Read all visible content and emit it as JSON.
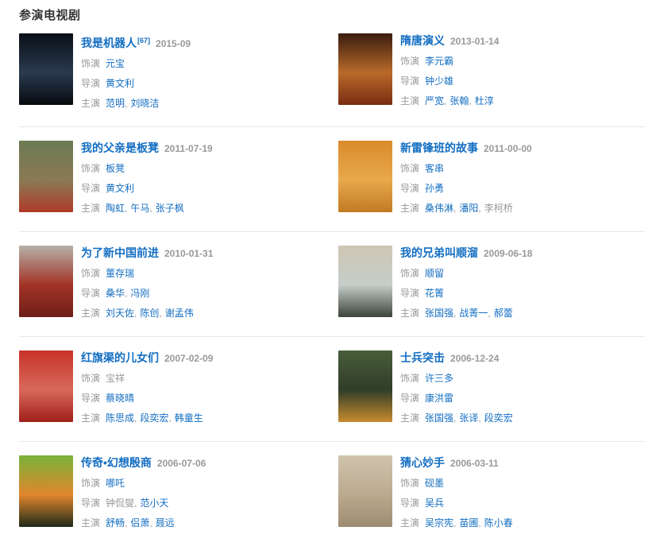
{
  "page": {
    "section_title": "参演电视剧"
  },
  "labels": {
    "role": "饰演",
    "director": "导演",
    "starring": "主演",
    "separator": ","
  },
  "colors": {
    "link": "#136ec2",
    "muted": "#999999",
    "heading": "#333333",
    "divider": "#e7e7e7"
  },
  "items": [
    {
      "title": "我是机器人",
      "ref": "[67]",
      "date": "2015-09",
      "role": [
        {
          "text": "元宝",
          "link": true
        }
      ],
      "directors": [
        {
          "text": "黄文利",
          "link": true
        }
      ],
      "starring": [
        {
          "text": "范明",
          "link": true
        },
        {
          "text": "刘晓洁",
          "link": true
        }
      ],
      "poster_colors": [
        "#0b0f16",
        "#2a3a50",
        "#070a0e"
      ]
    },
    {
      "title": "隋唐演义",
      "ref": "",
      "date": "2013-01-14",
      "role": [
        {
          "text": "李元霸",
          "link": true
        }
      ],
      "directors": [
        {
          "text": "钟少雄",
          "link": true
        }
      ],
      "starring": [
        {
          "text": "严宽",
          "link": true
        },
        {
          "text": "张翰",
          "link": true
        },
        {
          "text": "杜淳",
          "link": true
        }
      ],
      "poster_colors": [
        "#3a1c10",
        "#b96a2a",
        "#7a2c12"
      ]
    },
    {
      "title": "我的父亲是板凳",
      "ref": "",
      "date": "2011-07-19",
      "role": [
        {
          "text": "板凳",
          "link": true
        }
      ],
      "directors": [
        {
          "text": "黄文利",
          "link": true
        }
      ],
      "starring": [
        {
          "text": "陶虹",
          "link": true
        },
        {
          "text": "午马",
          "link": true
        },
        {
          "text": "张子枫",
          "link": true
        }
      ],
      "poster_colors": [
        "#6b7a52",
        "#8a7a55",
        "#b03a28"
      ]
    },
    {
      "title": "新雷锋班的故事",
      "ref": "",
      "date": "2011-00-00",
      "role": [
        {
          "text": "客串",
          "link": true
        }
      ],
      "directors": [
        {
          "text": "孙勇",
          "link": true
        }
      ],
      "starring": [
        {
          "text": "桑伟淋",
          "link": true
        },
        {
          "text": "潘阳",
          "link": true
        },
        {
          "text": "李柯桥",
          "link": false
        }
      ],
      "poster_colors": [
        "#d98b2b",
        "#e8a84c",
        "#c27a22"
      ]
    },
    {
      "title": "为了新中国前进",
      "ref": "",
      "date": "2010-01-31",
      "role": [
        {
          "text": "董存瑞",
          "link": true
        }
      ],
      "directors": [
        {
          "text": "桑华",
          "link": true
        },
        {
          "text": "冯刚",
          "link": true
        }
      ],
      "starring": [
        {
          "text": "刘天佐",
          "link": true
        },
        {
          "text": "陈创",
          "link": true
        },
        {
          "text": "谢孟伟",
          "link": true
        }
      ],
      "poster_colors": [
        "#b5b0a8",
        "#a33326",
        "#6e1f18"
      ]
    },
    {
      "title": "我的兄弟叫顺溜",
      "ref": "",
      "date": "2009-06-18",
      "role": [
        {
          "text": "顺留",
          "link": true
        }
      ],
      "directors": [
        {
          "text": "花箐",
          "link": true
        }
      ],
      "starring": [
        {
          "text": "张国强",
          "link": true
        },
        {
          "text": "战菁一",
          "link": true
        },
        {
          "text": "郝蕾",
          "link": true
        }
      ],
      "poster_colors": [
        "#cfc6b4",
        "#c5cdc9",
        "#3e443c"
      ]
    },
    {
      "title": "红旗渠的儿女们",
      "ref": "",
      "date": "2007-02-09",
      "role": [
        {
          "text": "宝祥",
          "link": false
        }
      ],
      "directors": [
        {
          "text": "蔡晓晴",
          "link": true
        }
      ],
      "starring": [
        {
          "text": "陈思成",
          "link": true
        },
        {
          "text": "段奕宏",
          "link": true
        },
        {
          "text": "韩童生",
          "link": true
        }
      ],
      "poster_colors": [
        "#c8332a",
        "#d8685a",
        "#a01f1a"
      ]
    },
    {
      "title": "士兵突击",
      "ref": "",
      "date": "2006-12-24",
      "role": [
        {
          "text": "许三多",
          "link": true
        }
      ],
      "directors": [
        {
          "text": "康洪雷",
          "link": true
        }
      ],
      "starring": [
        {
          "text": "张国强",
          "link": true
        },
        {
          "text": "张译",
          "link": true
        },
        {
          "text": "段奕宏",
          "link": true
        }
      ],
      "poster_colors": [
        "#4a5d3a",
        "#2f3d2a",
        "#c78b2e"
      ]
    },
    {
      "title": "传奇•幻想殷商",
      "ref": "",
      "date": "2006-07-06",
      "role": [
        {
          "text": "哪吒",
          "link": true
        }
      ],
      "directors": [
        {
          "text": "钟侃燮",
          "link": false
        },
        {
          "text": "范小天",
          "link": true
        }
      ],
      "starring": [
        {
          "text": "舒畅",
          "link": true
        },
        {
          "text": "侣萧",
          "link": true
        },
        {
          "text": "聂远",
          "link": true
        }
      ],
      "poster_colors": [
        "#7ab33a",
        "#e0862d",
        "#1f2a18"
      ]
    },
    {
      "title": "猜心妙手",
      "ref": "",
      "date": "2006-03-11",
      "role": [
        {
          "text": "砚墨",
          "link": true
        }
      ],
      "directors": [
        {
          "text": "吴兵",
          "link": true
        }
      ],
      "starring": [
        {
          "text": "吴宗宪",
          "link": true
        },
        {
          "text": "苗圃",
          "link": true
        },
        {
          "text": "陈小春",
          "link": true
        }
      ],
      "poster_colors": [
        "#cfc4ae",
        "#bba98e",
        "#9e8c72"
      ]
    }
  ]
}
